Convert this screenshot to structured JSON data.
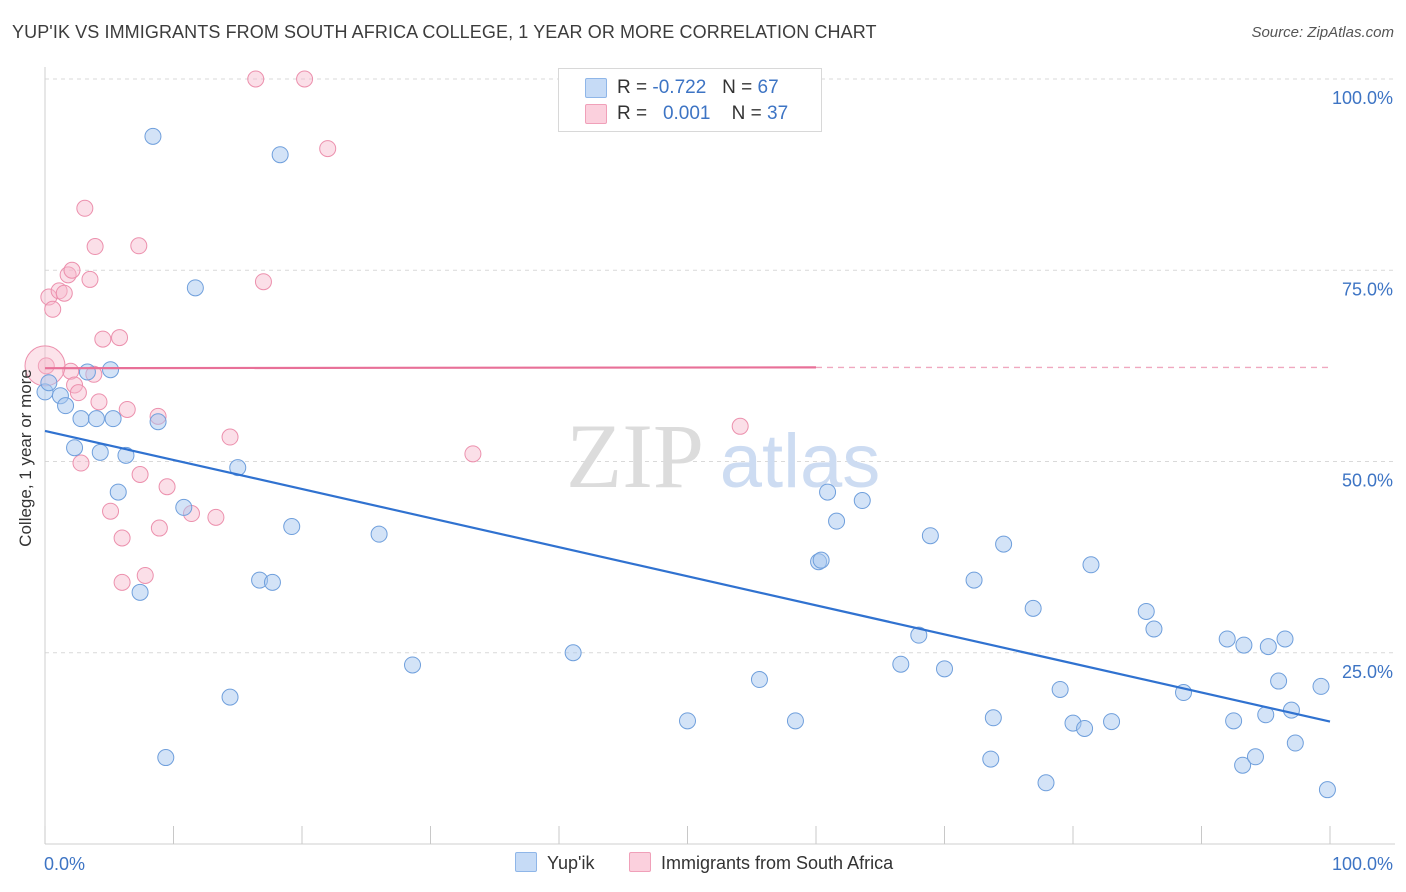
{
  "title": "YUP'IK VS IMMIGRANTS FROM SOUTH AFRICA COLLEGE, 1 YEAR OR MORE CORRELATION CHART",
  "source": "Source: ZipAtlas.com",
  "watermark": {
    "zip": "ZIP",
    "atlas": "atlas"
  },
  "legend": {
    "rows": [
      {
        "r_label": "R =",
        "r_value": "-0.722",
        "n_label": "N =",
        "n_value": "67",
        "color": "#a8c8f0"
      },
      {
        "r_label": "R =",
        "r_value": "0.001",
        "n_label": "N =",
        "n_value": "37",
        "color": "#f7b8cb"
      }
    ]
  },
  "bottom_legend": {
    "series1": "Yup'ik",
    "series2": "Immigrants from South Africa"
  },
  "chart_data": {
    "type": "scatter",
    "title": "YUP'IK VS IMMIGRANTS FROM SOUTH AFRICA COLLEGE, 1 YEAR OR MORE CORRELATION CHART",
    "xlabel": "",
    "ylabel": "College, 1 year or more",
    "xlim": [
      0,
      100
    ],
    "ylim": [
      0,
      100
    ],
    "x_tick_labels": [
      "0.0%",
      "100.0%"
    ],
    "y_tick_labels": [
      "25.0%",
      "50.0%",
      "75.0%",
      "100.0%"
    ],
    "y_ticks": [
      25,
      50,
      75,
      100
    ],
    "colors": {
      "blue": "#a8c8f0",
      "blue_edge": "#6f9fdc",
      "blue_line": "#3072d0",
      "pink": "#f7b8cb",
      "pink_edge": "#ec90ad",
      "pink_line": "#e87098"
    },
    "series": [
      {
        "name": "Yup'ik",
        "trend": {
          "x": [
            0,
            100
          ],
          "y": [
            54,
            16
          ]
        },
        "points": [
          [
            0.0,
            59.1
          ],
          [
            0.3,
            60.3
          ],
          [
            1.2,
            58.6
          ],
          [
            1.6,
            57.3
          ],
          [
            2.3,
            51.8
          ],
          [
            2.8,
            55.6
          ],
          [
            3.3,
            61.7
          ],
          [
            4.0,
            55.6
          ],
          [
            4.3,
            51.2
          ],
          [
            5.1,
            62.0
          ],
          [
            5.3,
            55.6
          ],
          [
            5.7,
            46.0
          ],
          [
            6.3,
            50.8
          ],
          [
            7.4,
            32.9
          ],
          [
            8.4,
            92.5
          ],
          [
            8.8,
            55.2
          ],
          [
            9.4,
            11.3
          ],
          [
            10.8,
            44.0
          ],
          [
            11.7,
            72.7
          ],
          [
            14.4,
            19.2
          ],
          [
            15.0,
            49.2
          ],
          [
            16.7,
            34.5
          ],
          [
            17.7,
            34.2
          ],
          [
            18.3,
            90.1
          ],
          [
            19.2,
            41.5
          ],
          [
            26.0,
            40.5
          ],
          [
            28.6,
            23.4
          ],
          [
            41.1,
            25.0
          ],
          [
            50.0,
            16.1
          ],
          [
            55.6,
            21.5
          ],
          [
            58.4,
            16.1
          ],
          [
            60.2,
            36.9
          ],
          [
            60.4,
            37.1
          ],
          [
            60.9,
            46.0
          ],
          [
            61.6,
            42.2
          ],
          [
            63.6,
            44.9
          ],
          [
            66.6,
            23.5
          ],
          [
            68.0,
            27.3
          ],
          [
            68.9,
            40.3
          ],
          [
            70.0,
            22.9
          ],
          [
            72.3,
            34.5
          ],
          [
            73.6,
            11.1
          ],
          [
            73.8,
            16.5
          ],
          [
            74.6,
            39.2
          ],
          [
            76.9,
            30.8
          ],
          [
            77.9,
            8.0
          ],
          [
            79.0,
            20.2
          ],
          [
            80.0,
            15.8
          ],
          [
            80.9,
            15.1
          ],
          [
            81.4,
            36.5
          ],
          [
            83.0,
            16.0
          ],
          [
            85.7,
            30.4
          ],
          [
            86.3,
            28.1
          ],
          [
            88.6,
            19.8
          ],
          [
            92.0,
            26.8
          ],
          [
            92.5,
            16.1
          ],
          [
            93.2,
            10.3
          ],
          [
            93.3,
            26.0
          ],
          [
            94.2,
            11.4
          ],
          [
            95.0,
            16.9
          ],
          [
            95.2,
            25.8
          ],
          [
            96.0,
            21.3
          ],
          [
            96.5,
            26.8
          ],
          [
            97.0,
            17.5
          ],
          [
            97.3,
            13.2
          ],
          [
            99.3,
            20.6
          ],
          [
            99.8,
            7.1
          ]
        ]
      },
      {
        "name": "Immigrants from South Africa",
        "trend": {
          "x": [
            0,
            60
          ],
          "y": [
            62.2,
            62.3
          ],
          "dashed_to": 100
        },
        "points": [
          [
            0.1,
            62.5
          ],
          [
            0.3,
            71.5
          ],
          [
            0.6,
            69.9
          ],
          [
            1.1,
            72.3
          ],
          [
            1.5,
            72.0
          ],
          [
            1.8,
            74.4
          ],
          [
            2.0,
            61.8
          ],
          [
            2.1,
            75.0
          ],
          [
            2.3,
            60.0
          ],
          [
            2.6,
            59.0
          ],
          [
            2.8,
            49.8
          ],
          [
            3.1,
            83.1
          ],
          [
            3.5,
            73.8
          ],
          [
            3.8,
            61.4
          ],
          [
            3.9,
            78.1
          ],
          [
            4.2,
            57.8
          ],
          [
            4.5,
            66.0
          ],
          [
            5.1,
            43.5
          ],
          [
            5.8,
            66.2
          ],
          [
            6.0,
            40.0
          ],
          [
            6.0,
            34.2
          ],
          [
            6.4,
            56.8
          ],
          [
            7.3,
            78.2
          ],
          [
            7.4,
            48.3
          ],
          [
            7.8,
            35.1
          ],
          [
            8.8,
            55.9
          ],
          [
            8.9,
            41.3
          ],
          [
            9.5,
            46.7
          ],
          [
            11.4,
            43.2
          ],
          [
            13.3,
            42.7
          ],
          [
            14.4,
            53.2
          ],
          [
            16.4,
            100.0
          ],
          [
            17.0,
            73.5
          ],
          [
            20.2,
            100.0
          ],
          [
            22.0,
            90.9
          ],
          [
            33.3,
            51.0
          ],
          [
            54.1,
            54.6
          ]
        ]
      }
    ]
  }
}
